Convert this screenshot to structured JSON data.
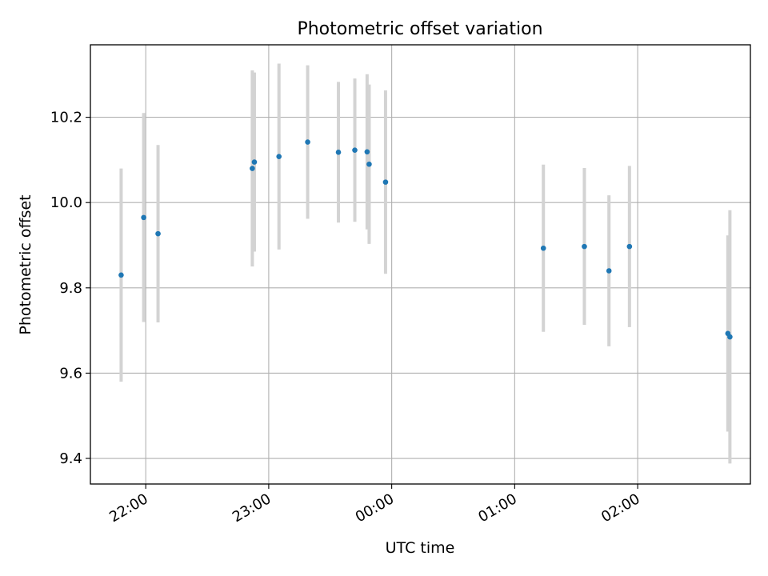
{
  "chart_data": {
    "type": "scatter",
    "title": "Photometric offset variation",
    "xlabel": "UTC time",
    "ylabel": "Photometric offset",
    "grid": true,
    "x_tick_labels": [
      "22:00",
      "23:00",
      "00:00",
      "01:00",
      "02:00"
    ],
    "y_tick_labels": [
      "9.4",
      "9.6",
      "9.8",
      "10.0",
      "10.2"
    ],
    "y_ticks": [
      9.4,
      9.6,
      9.8,
      10.0,
      10.2
    ],
    "xlim": [
      "21:33",
      "02:55"
    ],
    "ylim": [
      9.34,
      10.37
    ],
    "marker_color": "#1f77b4",
    "errorbar_color": "#d3d3d3",
    "points": [
      {
        "x": "21:48",
        "y": 9.83,
        "yerr": 0.25
      },
      {
        "x": "21:59",
        "y": 9.965,
        "yerr": 0.245
      },
      {
        "x": "22:06",
        "y": 9.927,
        "yerr": 0.208
      },
      {
        "x": "22:52",
        "y": 10.08,
        "yerr": 0.23
      },
      {
        "x": "22:53",
        "y": 10.095,
        "yerr": 0.21
      },
      {
        "x": "23:05",
        "y": 10.108,
        "yerr": 0.218
      },
      {
        "x": "23:19",
        "y": 10.142,
        "yerr": 0.18
      },
      {
        "x": "23:34",
        "y": 10.118,
        "yerr": 0.165
      },
      {
        "x": "23:42",
        "y": 10.123,
        "yerr": 0.168
      },
      {
        "x": "23:48",
        "y": 10.119,
        "yerr": 0.182
      },
      {
        "x": "23:49",
        "y": 10.09,
        "yerr": 0.187
      },
      {
        "x": "23:57",
        "y": 10.048,
        "yerr": 0.215
      },
      {
        "x": "01:14",
        "y": 9.893,
        "yerr": 0.196
      },
      {
        "x": "01:34",
        "y": 9.897,
        "yerr": 0.184
      },
      {
        "x": "01:46",
        "y": 9.84,
        "yerr": 0.177
      },
      {
        "x": "01:56",
        "y": 9.897,
        "yerr": 0.189
      },
      {
        "x": "02:44",
        "y": 9.693,
        "yerr": 0.23
      },
      {
        "x": "02:45",
        "y": 9.685,
        "yerr": 0.297
      }
    ]
  }
}
